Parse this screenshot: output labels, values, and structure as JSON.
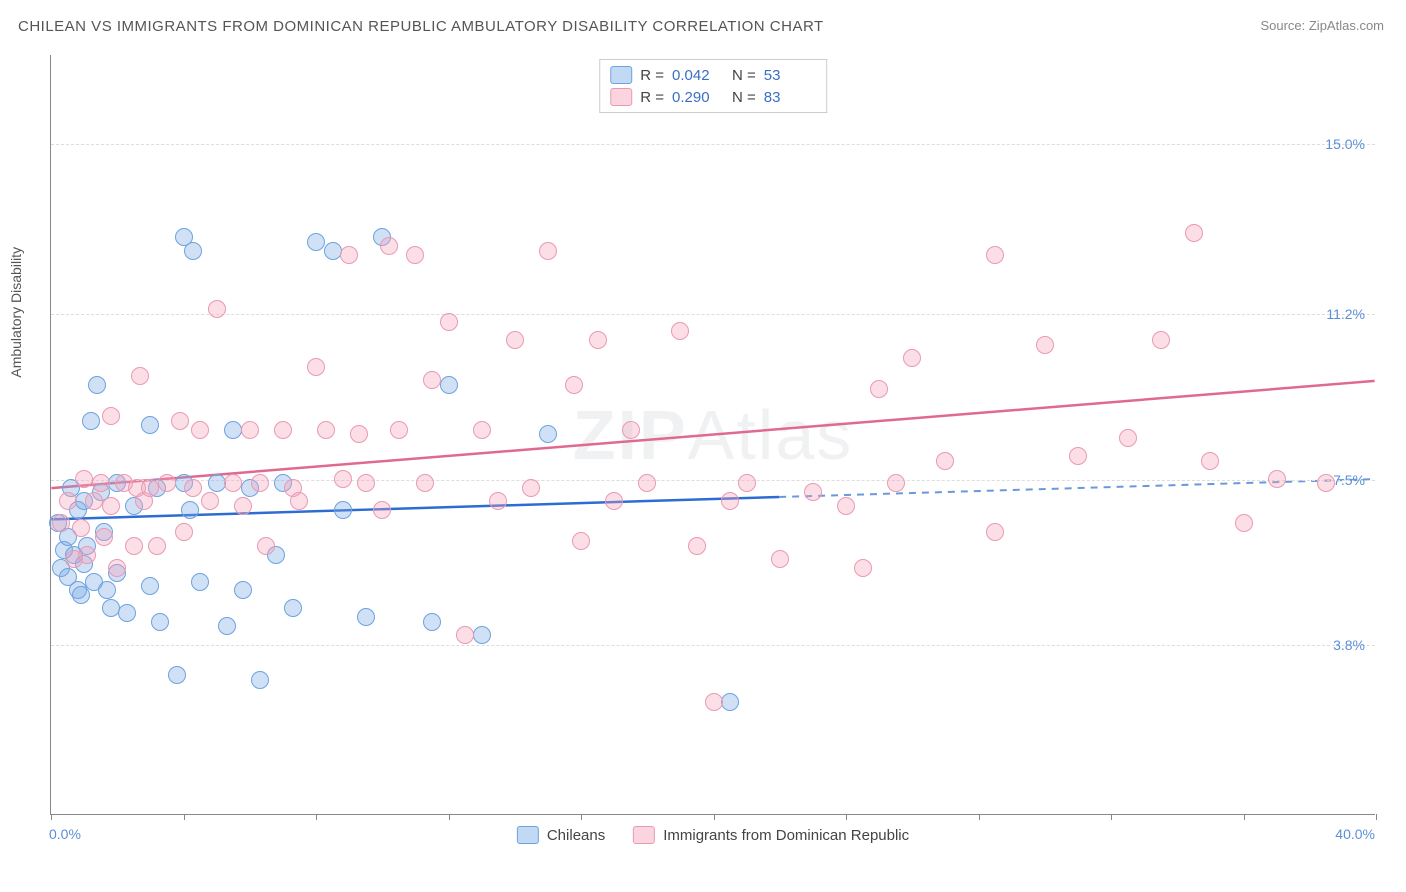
{
  "title": "CHILEAN VS IMMIGRANTS FROM DOMINICAN REPUBLIC AMBULATORY DISABILITY CORRELATION CHART",
  "source": "Source: ZipAtlas.com",
  "watermark_bold": "ZIP",
  "watermark_rest": "Atlas",
  "chart": {
    "type": "scatter",
    "xlim": [
      0,
      40
    ],
    "ylim": [
      0,
      17
    ],
    "x_min_label": "0.0%",
    "x_max_label": "40.0%",
    "x_ticks": [
      0,
      4,
      8,
      12,
      16,
      20,
      24,
      28,
      32,
      36,
      40
    ],
    "y_gridlines": [
      {
        "value": 3.8,
        "label": "3.8%"
      },
      {
        "value": 7.5,
        "label": "7.5%"
      },
      {
        "value": 11.2,
        "label": "11.2%"
      },
      {
        "value": 15.0,
        "label": "15.0%"
      }
    ],
    "y_axis_title": "Ambulatory Disability",
    "background_color": "#ffffff",
    "grid_color": "#dddddd",
    "axis_color": "#888888",
    "tick_label_color": "#5b8fd6",
    "marker_radius": 9,
    "series": [
      {
        "name": "Chileans",
        "fill_color": "rgba(120,170,230,0.35)",
        "stroke_color": "#6da2e0",
        "points": [
          [
            0.2,
            6.5
          ],
          [
            0.3,
            5.5
          ],
          [
            0.4,
            5.9
          ],
          [
            0.5,
            6.2
          ],
          [
            0.5,
            5.3
          ],
          [
            0.6,
            7.3
          ],
          [
            0.7,
            5.8
          ],
          [
            0.8,
            5.0
          ],
          [
            0.8,
            6.8
          ],
          [
            0.9,
            4.9
          ],
          [
            1.0,
            7.0
          ],
          [
            1.0,
            5.6
          ],
          [
            1.1,
            6.0
          ],
          [
            1.2,
            8.8
          ],
          [
            1.3,
            5.2
          ],
          [
            1.4,
            9.6
          ],
          [
            1.5,
            7.2
          ],
          [
            1.6,
            6.3
          ],
          [
            1.7,
            5.0
          ],
          [
            1.8,
            4.6
          ],
          [
            2.0,
            7.4
          ],
          [
            2.0,
            5.4
          ],
          [
            2.3,
            4.5
          ],
          [
            2.5,
            6.9
          ],
          [
            3.0,
            8.7
          ],
          [
            3.0,
            5.1
          ],
          [
            3.2,
            7.3
          ],
          [
            3.3,
            4.3
          ],
          [
            3.8,
            3.1
          ],
          [
            4.0,
            7.4
          ],
          [
            4.0,
            12.9
          ],
          [
            4.2,
            6.8
          ],
          [
            4.3,
            12.6
          ],
          [
            4.5,
            5.2
          ],
          [
            5.0,
            7.4
          ],
          [
            5.3,
            4.2
          ],
          [
            5.5,
            8.6
          ],
          [
            5.8,
            5.0
          ],
          [
            6.0,
            7.3
          ],
          [
            6.3,
            3.0
          ],
          [
            6.8,
            5.8
          ],
          [
            7.0,
            7.4
          ],
          [
            7.3,
            4.6
          ],
          [
            8.0,
            12.8
          ],
          [
            8.5,
            12.6
          ],
          [
            8.8,
            6.8
          ],
          [
            9.5,
            4.4
          ],
          [
            10.0,
            12.9
          ],
          [
            11.5,
            4.3
          ],
          [
            12.0,
            9.6
          ],
          [
            13.0,
            4.0
          ],
          [
            15.0,
            8.5
          ],
          [
            20.5,
            2.5
          ]
        ]
      },
      {
        "name": "Immigrants from Dominican Republic",
        "fill_color": "rgba(245,160,185,0.35)",
        "stroke_color": "#e99ab3",
        "points": [
          [
            0.3,
            6.5
          ],
          [
            0.5,
            7.0
          ],
          [
            0.7,
            5.7
          ],
          [
            0.9,
            6.4
          ],
          [
            1.0,
            7.5
          ],
          [
            1.1,
            5.8
          ],
          [
            1.3,
            7.0
          ],
          [
            1.5,
            7.4
          ],
          [
            1.6,
            6.2
          ],
          [
            1.8,
            6.9
          ],
          [
            1.8,
            8.9
          ],
          [
            2.0,
            5.5
          ],
          [
            2.2,
            7.4
          ],
          [
            2.5,
            6.0
          ],
          [
            2.6,
            7.3
          ],
          [
            2.7,
            9.8
          ],
          [
            2.8,
            7.0
          ],
          [
            3.0,
            7.3
          ],
          [
            3.2,
            6.0
          ],
          [
            3.5,
            7.4
          ],
          [
            3.9,
            8.8
          ],
          [
            4.0,
            6.3
          ],
          [
            4.3,
            7.3
          ],
          [
            4.5,
            8.6
          ],
          [
            4.8,
            7.0
          ],
          [
            5.0,
            11.3
          ],
          [
            5.5,
            7.4
          ],
          [
            5.8,
            6.9
          ],
          [
            6.0,
            8.6
          ],
          [
            6.3,
            7.4
          ],
          [
            6.5,
            6.0
          ],
          [
            7.0,
            8.6
          ],
          [
            7.3,
            7.3
          ],
          [
            7.5,
            7.0
          ],
          [
            8.0,
            10.0
          ],
          [
            8.3,
            8.6
          ],
          [
            8.8,
            7.5
          ],
          [
            9.0,
            12.5
          ],
          [
            9.3,
            8.5
          ],
          [
            9.5,
            7.4
          ],
          [
            10.0,
            6.8
          ],
          [
            10.2,
            12.7
          ],
          [
            10.5,
            8.6
          ],
          [
            11.0,
            12.5
          ],
          [
            11.3,
            7.4
          ],
          [
            11.5,
            9.7
          ],
          [
            12.0,
            11.0
          ],
          [
            12.5,
            4.0
          ],
          [
            13.0,
            8.6
          ],
          [
            13.5,
            7.0
          ],
          [
            14.0,
            10.6
          ],
          [
            14.5,
            7.3
          ],
          [
            15.0,
            12.6
          ],
          [
            15.8,
            9.6
          ],
          [
            16.0,
            6.1
          ],
          [
            16.5,
            10.6
          ],
          [
            17.0,
            7.0
          ],
          [
            17.5,
            8.6
          ],
          [
            18.0,
            7.4
          ],
          [
            19.0,
            10.8
          ],
          [
            19.5,
            6.0
          ],
          [
            20.0,
            2.5
          ],
          [
            20.5,
            7.0
          ],
          [
            21.0,
            7.4
          ],
          [
            22.0,
            5.7
          ],
          [
            23.0,
            7.2
          ],
          [
            24.0,
            6.9
          ],
          [
            24.5,
            5.5
          ],
          [
            25.0,
            9.5
          ],
          [
            25.5,
            7.4
          ],
          [
            26.0,
            10.2
          ],
          [
            27.0,
            7.9
          ],
          [
            28.5,
            12.5
          ],
          [
            28.5,
            6.3
          ],
          [
            30.0,
            10.5
          ],
          [
            31.0,
            8.0
          ],
          [
            32.5,
            8.4
          ],
          [
            33.5,
            10.6
          ],
          [
            34.5,
            13.0
          ],
          [
            35.0,
            7.9
          ],
          [
            36.0,
            6.5
          ],
          [
            37.0,
            7.5
          ],
          [
            38.5,
            7.4
          ]
        ]
      }
    ],
    "trend_lines": [
      {
        "series": "Chileans",
        "solid_color": "#2d6cd2",
        "dash_color": "#6a98d8",
        "width": 2.5,
        "solid": {
          "x1": 0,
          "y1": 6.6,
          "x2": 22,
          "y2": 7.1
        },
        "dashed": {
          "x1": 22,
          "y1": 7.1,
          "x2": 40,
          "y2": 7.5
        }
      },
      {
        "series": "Dominican",
        "solid_color": "#e06a8f",
        "dash_color": "#e06a8f",
        "width": 2.5,
        "solid": {
          "x1": 0,
          "y1": 7.3,
          "x2": 40,
          "y2": 9.7
        },
        "dashed": null
      }
    ]
  },
  "legend_top": {
    "rows": [
      {
        "swatch_fill": "rgba(120,170,230,0.45)",
        "swatch_stroke": "#6da2e0",
        "r_label": "R =",
        "r_value": "0.042",
        "n_label": "N =",
        "n_value": "53"
      },
      {
        "swatch_fill": "rgba(245,160,185,0.45)",
        "swatch_stroke": "#e99ab3",
        "r_label": "R =",
        "r_value": "0.290",
        "n_label": "N =",
        "n_value": "83"
      }
    ]
  },
  "legend_bottom": {
    "items": [
      {
        "swatch_fill": "rgba(120,170,230,0.45)",
        "swatch_stroke": "#6da2e0",
        "label": "Chileans"
      },
      {
        "swatch_fill": "rgba(245,160,185,0.45)",
        "swatch_stroke": "#e99ab3",
        "label": "Immigrants from Dominican Republic"
      }
    ]
  }
}
